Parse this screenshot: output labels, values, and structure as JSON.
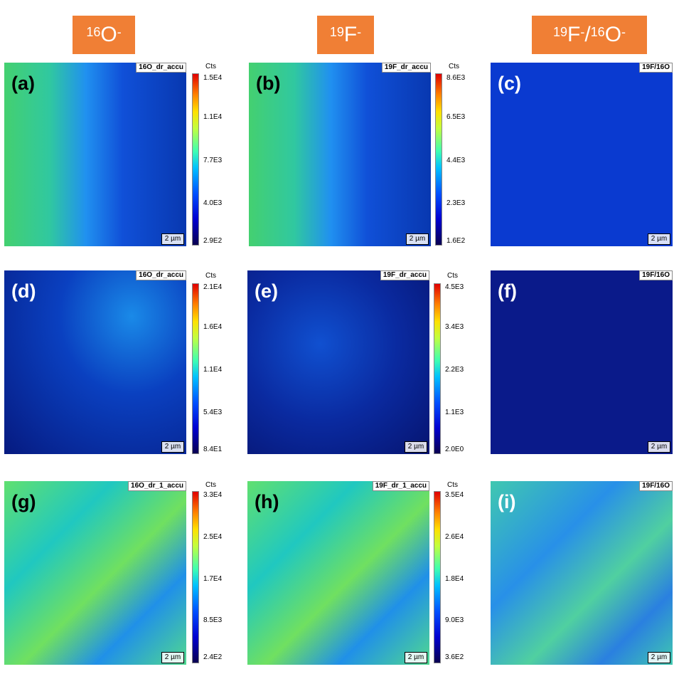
{
  "headers": [
    {
      "sup": "16",
      "base": "O",
      "sup2": "-",
      "mid": "",
      "sup3": "",
      "base2": "",
      "sup4": ""
    },
    {
      "sup": "19",
      "base": "F",
      "sup2": "-",
      "mid": "",
      "sup3": "",
      "base2": "",
      "sup4": ""
    },
    {
      "sup": "19",
      "base": "F",
      "sup2": "-",
      "mid": "/",
      "sup3": "16",
      "base2": "O",
      "sup4": "-"
    }
  ],
  "panels": [
    {
      "letter": "(a)",
      "title": "16O_dr_accu",
      "scale": "2 µm",
      "cts": "Cts",
      "ticks": [
        "1.5E4",
        "1.1E4",
        "7.7E3",
        "4.0E3",
        "2.9E2"
      ]
    },
    {
      "letter": "(b)",
      "title": "19F_dr_accu",
      "scale": "2 µm",
      "cts": "Cts",
      "ticks": [
        "8.6E3",
        "6.5E3",
        "4.4E3",
        "2.3E3",
        "1.6E2"
      ]
    },
    {
      "letter": "(c)",
      "title": "19F/16O",
      "scale": "2 µm"
    },
    {
      "letter": "(d)",
      "title": "16O_dr_accu",
      "scale": "2 µm",
      "cts": "Cts",
      "ticks": [
        "2.1E4",
        "1.6E4",
        "1.1E4",
        "5.4E3",
        "8.4E1"
      ]
    },
    {
      "letter": "(e)",
      "title": "19F_dr_accu",
      "scale": "2 µm",
      "cts": "Cts",
      "ticks": [
        "4.5E3",
        "3.4E3",
        "2.2E3",
        "1.1E3",
        "2.0E0"
      ]
    },
    {
      "letter": "(f)",
      "title": "19F/16O",
      "scale": "2 µm"
    },
    {
      "letter": "(g)",
      "title": "16O_dr_1_accu",
      "scale": "2 µm",
      "cts": "Cts",
      "ticks": [
        "3.3E4",
        "2.5E4",
        "1.7E4",
        "8.5E3",
        "2.4E2"
      ]
    },
    {
      "letter": "(h)",
      "title": "19F_dr_1_accu",
      "scale": "2 µm",
      "cts": "Cts",
      "ticks": [
        "3.5E4",
        "2.6E4",
        "1.8E4",
        "9.0E3",
        "3.6E2"
      ]
    },
    {
      "letter": "(i)",
      "title": "19F/16O",
      "scale": "2 µm"
    }
  ]
}
